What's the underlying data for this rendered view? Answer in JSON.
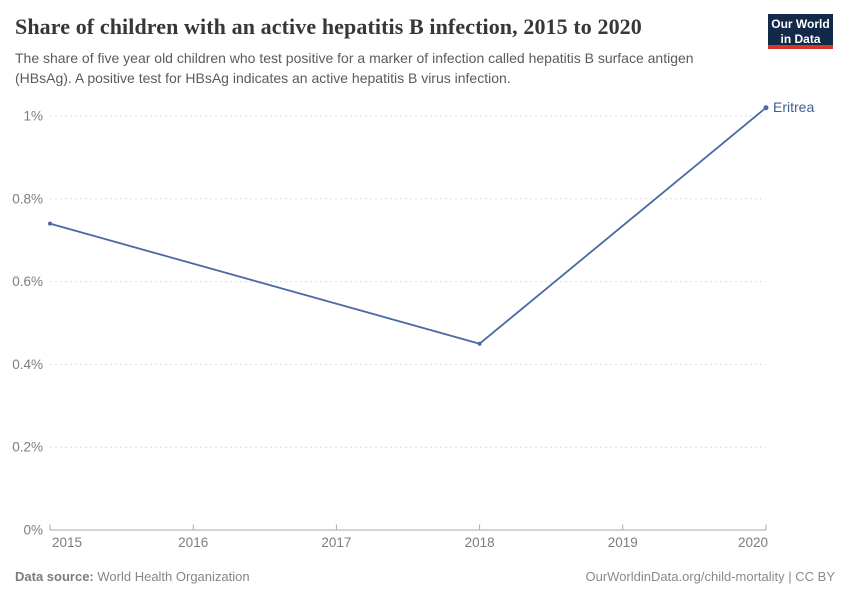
{
  "header": {
    "title": "Share of children with an active hepatitis B infection, 2015 to 2020",
    "subtitle": "The share of five year old children who test positive for a marker of infection called hepatitis B surface antigen (HBsAg). A positive test for HBsAg indicates an active hepatitis B virus infection.",
    "logo_line1": "Our World",
    "logo_line2": "in Data"
  },
  "chart_data": {
    "type": "line",
    "title": "Share of children with an active hepatitis B infection, 2015 to 2020",
    "xlabel": "",
    "ylabel": "",
    "unit": "%",
    "xlim": [
      2015,
      2020
    ],
    "ylim": [
      0,
      1.05
    ],
    "grid": true,
    "x_ticks": [
      2015,
      2016,
      2017,
      2018,
      2019,
      2020
    ],
    "y_ticks": [
      0,
      0.2,
      0.4,
      0.6,
      0.8,
      1
    ],
    "y_tick_labels": [
      "0%",
      "0.2%",
      "0.4%",
      "0.6%",
      "0.8%",
      "1%"
    ],
    "series": [
      {
        "name": "Eritrea",
        "x": [
          2015,
          2018,
          2020
        ],
        "values": [
          0.74,
          0.45,
          1.02
        ]
      }
    ],
    "legend_position": "end-of-line-label"
  },
  "colors": {
    "line": "#4a69a5",
    "series_label": "#3d5e99",
    "grid": "#dddddd",
    "axis": "#a8a8a8",
    "tick_text": "#7d7d7d",
    "logo_bg": "#12294a",
    "logo_red": "#d8352a"
  },
  "footer": {
    "datasource_label": "Data source:",
    "datasource_value": "World Health Organization",
    "link": "OurWorldinData.org/child-mortality | CC BY"
  }
}
